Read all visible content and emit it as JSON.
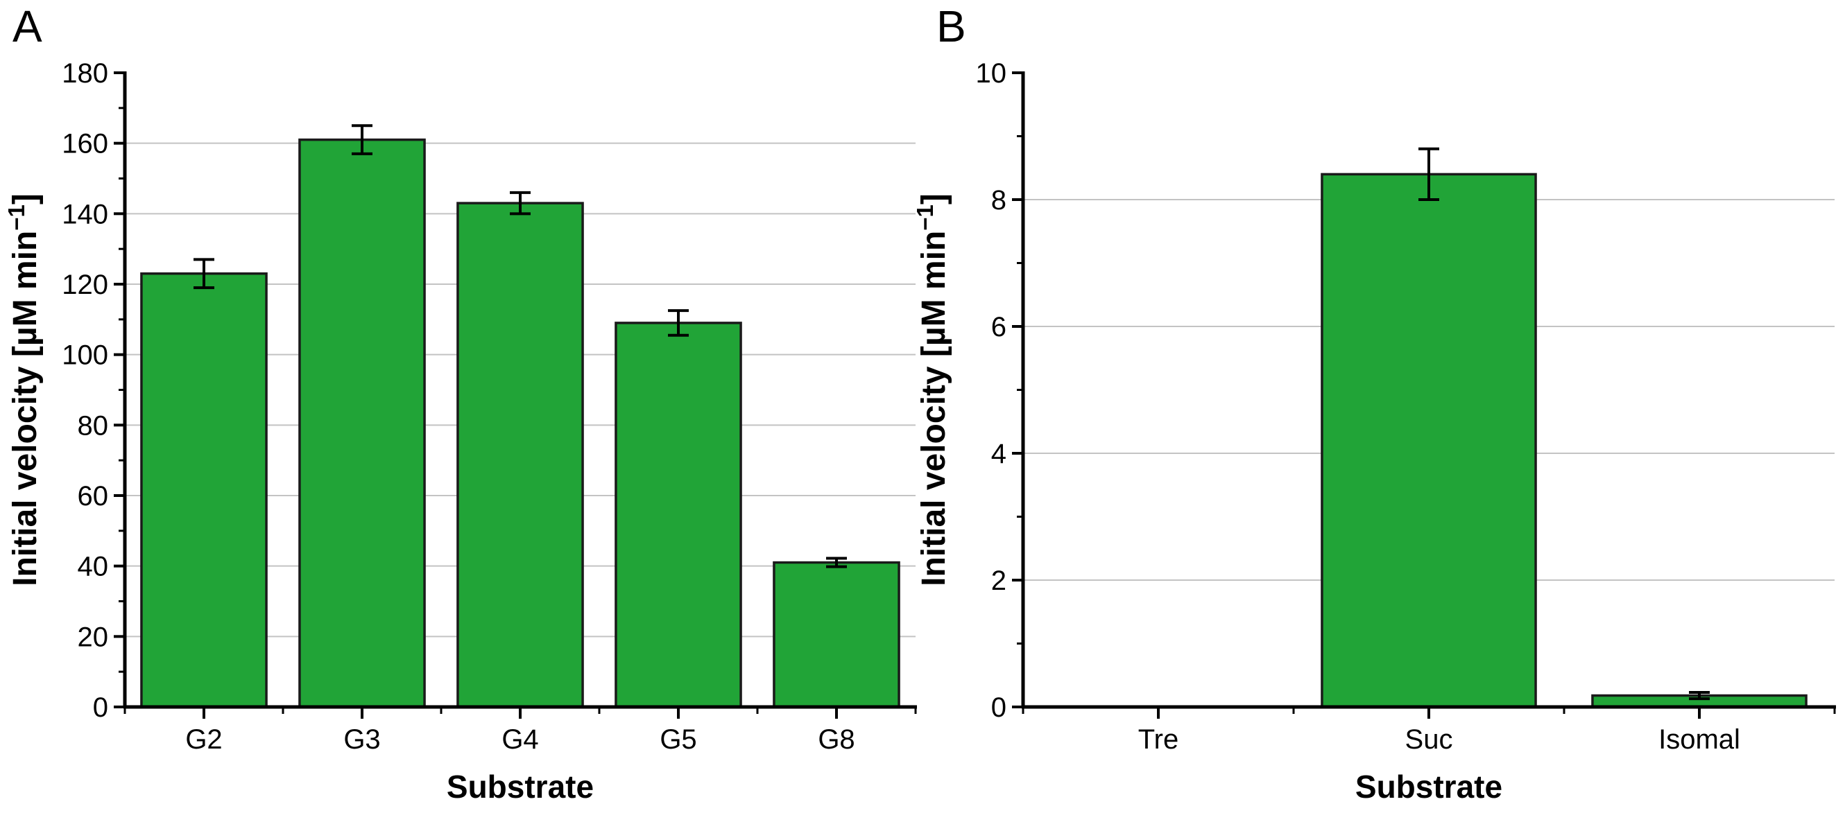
{
  "panels": [
    {
      "label": "A"
    },
    {
      "label": "B"
    }
  ],
  "chart_data": [
    {
      "panel": "A",
      "type": "bar",
      "categories": [
        "G2",
        "G3",
        "G4",
        "G5",
        "G8"
      ],
      "values": [
        123,
        161,
        143,
        109,
        41
      ],
      "errors": [
        4,
        4,
        3,
        3.5,
        1.2
      ],
      "title": "",
      "xlabel": "Substrate",
      "ylabel": "Initial velocity [µM min⁻¹]",
      "ylabel_parts": {
        "main": "Initial velocity [µM min",
        "sup": "−1",
        "close": "]"
      },
      "ylim": [
        0,
        180
      ],
      "ytick_step": 20,
      "yminor_step": 10,
      "grid": true,
      "legend": "none",
      "bar_color": "#21a437",
      "bar_edge_color": "#1a1a1a",
      "grid_color": "#c3c3c3",
      "axis_color": "#000000"
    },
    {
      "panel": "B",
      "type": "bar",
      "categories": [
        "Tre",
        "Suc",
        "Isomal"
      ],
      "values": [
        0,
        8.4,
        0.18
      ],
      "errors": [
        null,
        0.4,
        0.05
      ],
      "title": "",
      "xlabel": "Substrate",
      "ylabel": "Initial velocity [µM min⁻¹]",
      "ylabel_parts": {
        "main": "Initial velocity [µM min",
        "sup": "−1",
        "close": "]"
      },
      "ylim": [
        0,
        10
      ],
      "ytick_step": 2,
      "yminor_step": 1,
      "grid": true,
      "legend": "none",
      "bar_color": "#21a437",
      "bar_edge_color": "#1a1a1a",
      "grid_color": "#c3c3c3",
      "axis_color": "#000000"
    }
  ]
}
